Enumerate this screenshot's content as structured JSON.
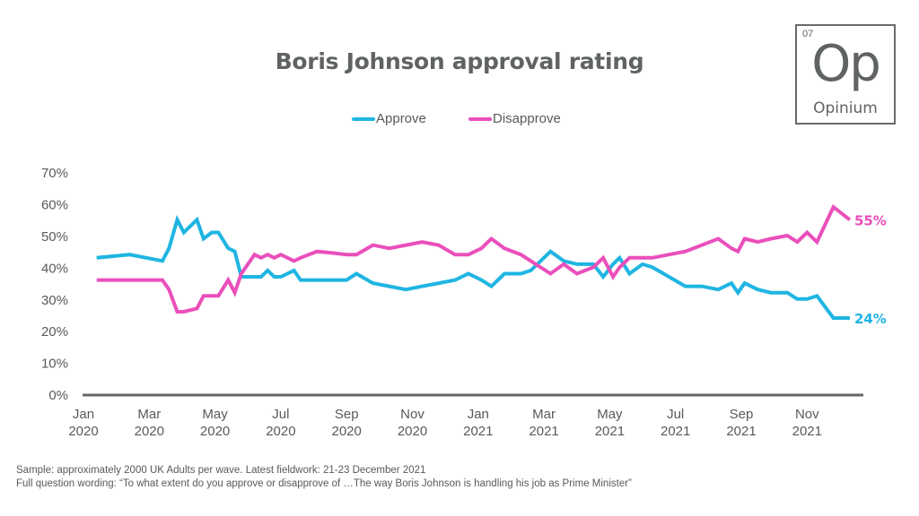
{
  "logo": {
    "number": "07",
    "symbol": "Op",
    "name": "Opinium"
  },
  "footer": {
    "sample": "Sample: approximately 2000 UK Adults per wave. Latest fieldwork: 21-23 December 2021",
    "question": "Full question wording: “To what extent do you approve or disapprove of …The way Boris Johnson is handling his job as Prime Minister”"
  },
  "chart_data": {
    "type": "line",
    "title": "Boris Johnson approval rating",
    "xlabel": "",
    "ylabel": "",
    "ylim": [
      0,
      70
    ],
    "yticks": [
      0,
      10,
      20,
      30,
      40,
      50,
      60,
      70
    ],
    "ytick_labels": [
      "0%",
      "10%",
      "20%",
      "30%",
      "40%",
      "50%",
      "60%",
      "70%"
    ],
    "xlim_months": [
      0,
      23.8
    ],
    "xticks": [
      {
        "month": 0,
        "label": [
          "Jan",
          "2020"
        ]
      },
      {
        "month": 2,
        "label": [
          "Mar",
          "2020"
        ]
      },
      {
        "month": 4,
        "label": [
          "May",
          "2020"
        ]
      },
      {
        "month": 6,
        "label": [
          "Jul",
          "2020"
        ]
      },
      {
        "month": 8,
        "label": [
          "Sep",
          "2020"
        ]
      },
      {
        "month": 10,
        "label": [
          "Nov",
          "2020"
        ]
      },
      {
        "month": 12,
        "label": [
          "Jan",
          "2021"
        ]
      },
      {
        "month": 14,
        "label": [
          "Mar",
          "2021"
        ]
      },
      {
        "month": 16,
        "label": [
          "May",
          "2021"
        ]
      },
      {
        "month": 18,
        "label": [
          "Jul",
          "2021"
        ]
      },
      {
        "month": 20,
        "label": [
          "Sep",
          "2021"
        ]
      },
      {
        "month": 22,
        "label": [
          "Nov",
          "2021"
        ]
      }
    ],
    "grid": false,
    "legend_position": "top-center",
    "x_unit": "months since Jan 2020",
    "series": [
      {
        "name": "Approve",
        "color": "#1fb5e2",
        "end_label": "24%",
        "points": [
          [
            0.4,
            43
          ],
          [
            1.4,
            44
          ],
          [
            2.4,
            42
          ],
          [
            2.6,
            46
          ],
          [
            2.85,
            55
          ],
          [
            3.05,
            51
          ],
          [
            3.45,
            55
          ],
          [
            3.65,
            49
          ],
          [
            3.9,
            51
          ],
          [
            4.1,
            51
          ],
          [
            4.4,
            46
          ],
          [
            4.6,
            45
          ],
          [
            4.8,
            37
          ],
          [
            5.2,
            37
          ],
          [
            5.4,
            37
          ],
          [
            5.6,
            39
          ],
          [
            5.8,
            37
          ],
          [
            6.0,
            37
          ],
          [
            6.4,
            39
          ],
          [
            6.6,
            36
          ],
          [
            7.1,
            36
          ],
          [
            7.6,
            36
          ],
          [
            8.0,
            36
          ],
          [
            8.3,
            38
          ],
          [
            8.8,
            35
          ],
          [
            9.3,
            34
          ],
          [
            9.8,
            33
          ],
          [
            10.3,
            34
          ],
          [
            10.8,
            35
          ],
          [
            11.3,
            36
          ],
          [
            11.7,
            38
          ],
          [
            12.1,
            36
          ],
          [
            12.4,
            34
          ],
          [
            12.8,
            38
          ],
          [
            13.3,
            38
          ],
          [
            13.6,
            39
          ],
          [
            14.2,
            45
          ],
          [
            14.6,
            42
          ],
          [
            15.0,
            41
          ],
          [
            15.5,
            41
          ],
          [
            15.8,
            37
          ],
          [
            16.1,
            41
          ],
          [
            16.3,
            43
          ],
          [
            16.6,
            38
          ],
          [
            17.0,
            41
          ],
          [
            17.3,
            40
          ],
          [
            17.8,
            37
          ],
          [
            18.3,
            34
          ],
          [
            18.8,
            34
          ],
          [
            19.3,
            33
          ],
          [
            19.7,
            35
          ],
          [
            19.9,
            32
          ],
          [
            20.1,
            35
          ],
          [
            20.5,
            33
          ],
          [
            20.9,
            32
          ],
          [
            21.4,
            32
          ],
          [
            21.7,
            30
          ],
          [
            22.0,
            30
          ],
          [
            22.3,
            31
          ],
          [
            22.8,
            24
          ],
          [
            23.3,
            24
          ]
        ]
      },
      {
        "name": "Disapprove",
        "color": "#ea4fbb",
        "end_label": "55%",
        "points": [
          [
            0.4,
            36
          ],
          [
            1.4,
            36
          ],
          [
            2.4,
            36
          ],
          [
            2.6,
            33
          ],
          [
            2.85,
            26
          ],
          [
            3.05,
            26
          ],
          [
            3.45,
            27
          ],
          [
            3.65,
            31
          ],
          [
            3.9,
            31
          ],
          [
            4.1,
            31
          ],
          [
            4.4,
            36
          ],
          [
            4.6,
            32
          ],
          [
            4.8,
            38
          ],
          [
            5.2,
            44
          ],
          [
            5.4,
            43
          ],
          [
            5.6,
            44
          ],
          [
            5.8,
            43
          ],
          [
            6.0,
            44
          ],
          [
            6.4,
            42
          ],
          [
            6.6,
            43
          ],
          [
            7.1,
            45
          ],
          [
            7.6,
            44.5
          ],
          [
            8.0,
            44
          ],
          [
            8.3,
            44
          ],
          [
            8.8,
            47
          ],
          [
            9.3,
            46
          ],
          [
            9.8,
            47
          ],
          [
            10.3,
            48
          ],
          [
            10.8,
            47
          ],
          [
            11.3,
            44
          ],
          [
            11.7,
            44
          ],
          [
            12.1,
            46
          ],
          [
            12.4,
            49
          ],
          [
            12.8,
            46
          ],
          [
            13.3,
            44
          ],
          [
            13.6,
            42
          ],
          [
            14.2,
            38
          ],
          [
            14.6,
            41
          ],
          [
            15.0,
            38
          ],
          [
            15.5,
            40
          ],
          [
            15.8,
            43
          ],
          [
            16.1,
            37
          ],
          [
            16.3,
            40
          ],
          [
            16.6,
            43
          ],
          [
            17.0,
            43
          ],
          [
            17.3,
            43
          ],
          [
            17.8,
            44
          ],
          [
            18.3,
            45
          ],
          [
            18.8,
            47
          ],
          [
            19.3,
            49
          ],
          [
            19.7,
            46
          ],
          [
            19.9,
            45
          ],
          [
            20.1,
            49
          ],
          [
            20.5,
            48
          ],
          [
            20.9,
            49
          ],
          [
            21.4,
            50
          ],
          [
            21.7,
            48
          ],
          [
            22.0,
            51
          ],
          [
            22.3,
            48
          ],
          [
            22.8,
            59
          ],
          [
            23.3,
            55
          ]
        ]
      }
    ]
  }
}
